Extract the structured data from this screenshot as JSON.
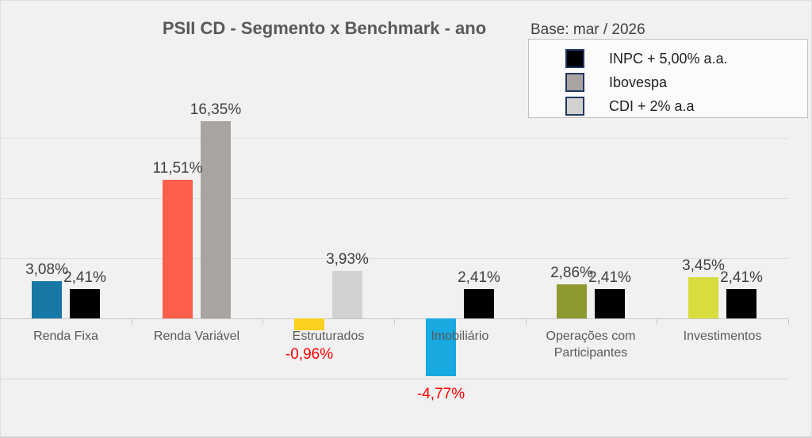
{
  "chart_data": {
    "type": "bar",
    "title": "PSII CD - Segmento x Benchmark - ano",
    "base_label": "Base: mar / 2026",
    "ylabel": "",
    "xlabel": "",
    "ylim": [
      -5,
      20
    ],
    "gridline_step_pct": 5,
    "grid": true,
    "legend_position": "top-right",
    "value_label_color": "#3f3f3f",
    "negative_label_color": "#ff0000",
    "legend": [
      {
        "name": "INPC + 5,00% a.a.",
        "color": "#000000"
      },
      {
        "name": "Ibovespa",
        "color": "#a9a4a1"
      },
      {
        "name": "CDI + 2% a.a",
        "color": "#d3d1d0"
      }
    ],
    "categories": [
      {
        "label": "Renda Fixa",
        "segment": {
          "value": 3.08,
          "display": "3,08%",
          "color": "#1878a5"
        },
        "benchmark": {
          "name": "INPC + 5,00% a.a.",
          "value": 2.41,
          "display": "2,41%",
          "color": "#000000"
        }
      },
      {
        "label": "Renda Variável",
        "segment": {
          "value": 11.51,
          "display": "11,51%",
          "color": "#fc5f4b"
        },
        "benchmark": {
          "name": "Ibovespa",
          "value": 16.35,
          "display": "16,35%",
          "color": "#a9a4a1"
        }
      },
      {
        "label": "Estruturados",
        "segment": {
          "value": -0.96,
          "display": "-0,96%",
          "color": "#fbd01e"
        },
        "benchmark": {
          "name": "CDI + 2% a.a",
          "value": 3.93,
          "display": "3,93%",
          "color": "#d3d1d0"
        }
      },
      {
        "label": "Imobiliário",
        "segment": {
          "value": -4.77,
          "display": "-4,77%",
          "color": "#17a9e0"
        },
        "benchmark": {
          "name": "INPC + 5,00% a.a.",
          "value": 2.41,
          "display": "2,41%",
          "color": "#000000"
        }
      },
      {
        "label": "Operações com Participantes",
        "segment": {
          "value": 2.86,
          "display": "2,86%",
          "color": "#8e992f"
        },
        "benchmark": {
          "name": "INPC + 5,00% a.a.",
          "value": 2.41,
          "display": "2,41%",
          "color": "#000000"
        }
      },
      {
        "label": "Investimentos",
        "segment": {
          "value": 3.45,
          "display": "3,45%",
          "color": "#d7dd3c"
        },
        "benchmark": {
          "name": "INPC + 5,00% a.a.",
          "value": 2.41,
          "display": "2,41%",
          "color": "#000000"
        }
      }
    ]
  }
}
